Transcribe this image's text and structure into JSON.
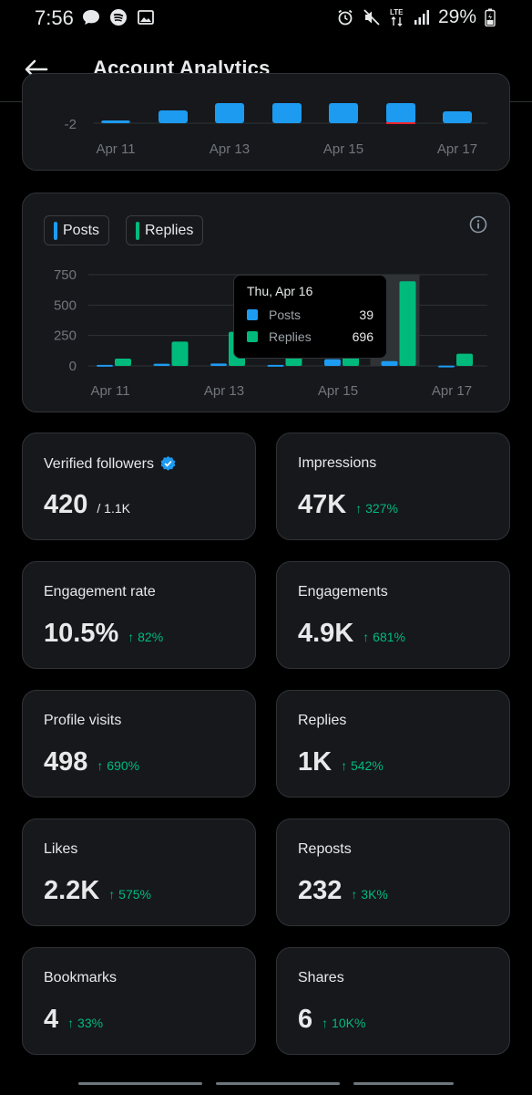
{
  "status_bar": {
    "time": "7:56",
    "battery": "29%",
    "network": "LTE"
  },
  "header": {
    "title": "Account Analytics"
  },
  "colors": {
    "posts": "#1d9bf0",
    "replies": "#00ba7c",
    "positive": "#00ba7c",
    "card_bg": "#16181c"
  },
  "top_chart": {
    "y_tick": "-2",
    "x_ticks": [
      "Apr 11",
      "Apr 13",
      "Apr 15",
      "Apr 17"
    ]
  },
  "activity_chart": {
    "legend_posts": "Posts",
    "legend_replies": "Replies",
    "tooltip": {
      "title": "Thu, Apr 16",
      "posts_label": "Posts",
      "posts_value": "39",
      "replies_label": "Replies",
      "replies_value": "696"
    }
  },
  "chart_data": {
    "type": "bar",
    "categories": [
      "Apr 11",
      "Apr 12",
      "Apr 13",
      "Apr 14",
      "Apr 15",
      "Apr 16",
      "Apr 17"
    ],
    "series": [
      {
        "name": "Posts",
        "values": [
          8,
          18,
          20,
          8,
          55,
          39,
          3
        ]
      },
      {
        "name": "Replies",
        "values": [
          60,
          200,
          280,
          210,
          230,
          696,
          100
        ]
      }
    ],
    "y_ticks": [
      "750",
      "500",
      "250",
      "0"
    ],
    "x_ticks": [
      "Apr 11",
      "Apr 13",
      "Apr 15",
      "Apr 17"
    ],
    "ylim": [
      0,
      750
    ],
    "highlighted_category": "Apr 16",
    "grid": true,
    "legend_position": "top-left"
  },
  "metrics": [
    {
      "label": "Verified followers",
      "value": "420",
      "sub": "/ 1.1K",
      "change": "",
      "verified": true
    },
    {
      "label": "Impressions",
      "value": "47K",
      "sub": "",
      "change": "↑ 327%"
    },
    {
      "label": "Engagement rate",
      "value": "10.5%",
      "sub": "",
      "change": "↑ 82%"
    },
    {
      "label": "Engagements",
      "value": "4.9K",
      "sub": "",
      "change": "↑ 681%"
    },
    {
      "label": "Profile visits",
      "value": "498",
      "sub": "",
      "change": "↑ 690%"
    },
    {
      "label": "Replies",
      "value": "1K",
      "sub": "",
      "change": "↑ 542%"
    },
    {
      "label": "Likes",
      "value": "2.2K",
      "sub": "",
      "change": "↑ 575%"
    },
    {
      "label": "Reposts",
      "value": "232",
      "sub": "",
      "change": "↑ 3K%"
    },
    {
      "label": "Bookmarks",
      "value": "4",
      "sub": "",
      "change": "↑ 33%"
    },
    {
      "label": "Shares",
      "value": "6",
      "sub": "",
      "change": "↑ 10K%"
    }
  ]
}
